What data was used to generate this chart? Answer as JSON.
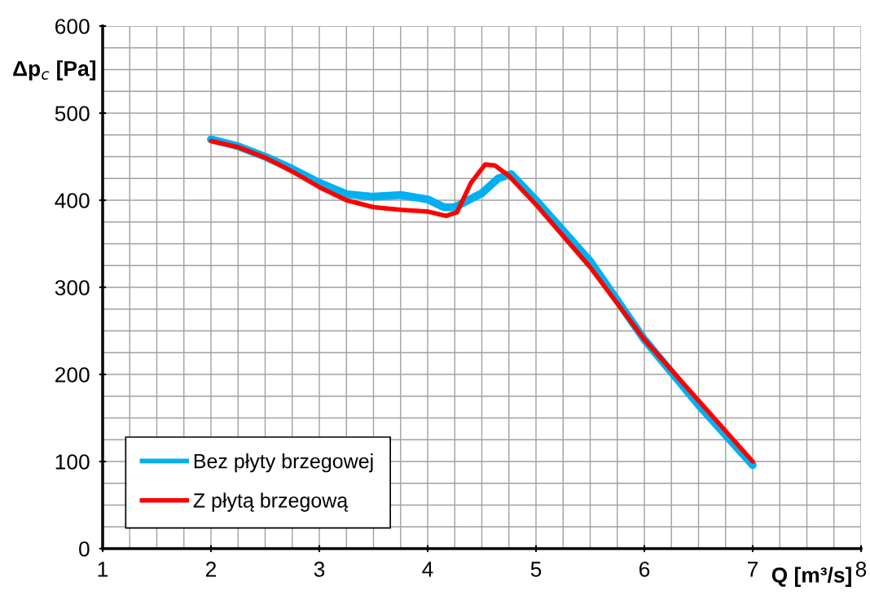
{
  "chart_data": {
    "type": "line",
    "xlabel": "Q [m³/s]",
    "ylabel": "Δp$_{c}$ [Pa]",
    "xlim": [
      1,
      8
    ],
    "ylim": [
      0,
      600
    ],
    "xticks": [
      1,
      {
        "value": 1.25,
        "label": null
      },
      {
        "value": 1.5,
        "label": null
      },
      {
        "value": 1.75,
        "label": null
      },
      2,
      {
        "value": 2.25,
        "label": null
      },
      {
        "value": 2.5,
        "label": null
      },
      {
        "value": 2.75,
        "label": null
      },
      3,
      {
        "value": 3.25,
        "label": null
      },
      {
        "value": 3.5,
        "label": null
      },
      {
        "value": 3.75,
        "label": null
      },
      4,
      {
        "value": 4.25,
        "label": null
      },
      {
        "value": 4.5,
        "label": null
      },
      {
        "value": 4.75,
        "label": null
      },
      5,
      {
        "value": 5.25,
        "label": null
      },
      {
        "value": 5.5,
        "label": null
      },
      {
        "value": 5.75,
        "label": null
      },
      6,
      {
        "value": 6.25,
        "label": null
      },
      {
        "value": 6.5,
        "label": null
      },
      {
        "value": 6.75,
        "label": null
      },
      7,
      {
        "value": 7.25,
        "label": null
      },
      {
        "value": 7.5,
        "label": null
      },
      {
        "value": 7.75,
        "label": null
      },
      8
    ],
    "yticks": [
      0,
      {
        "value": 25,
        "label": null
      },
      {
        "value": 50,
        "label": null
      },
      {
        "value": 75,
        "label": null
      },
      100,
      {
        "value": 125,
        "label": null
      },
      {
        "value": 150,
        "label": null
      },
      {
        "value": 175,
        "label": null
      },
      200,
      {
        "value": 225,
        "label": null
      },
      {
        "value": 250,
        "label": null
      },
      {
        "value": 275,
        "label": null
      },
      300,
      {
        "value": 325,
        "label": null
      },
      {
        "value": 350,
        "label": null
      },
      {
        "value": 375,
        "label": null
      },
      400,
      {
        "value": 425,
        "label": null
      },
      {
        "value": 450,
        "label": null
      },
      {
        "value": 475,
        "label": null
      },
      500,
      {
        "value": 525,
        "label": null
      },
      {
        "value": 550,
        "label": null
      },
      {
        "value": 575,
        "label": null
      },
      600
    ],
    "grid": true,
    "legend": "bottom left",
    "marker": "none",
    "line_style": "solid",
    "series": [
      {
        "name": "Bez płyty brzegowej",
        "color": "#00b0f0",
        "x": [
          2,
          2.25,
          2.5,
          2.75,
          3,
          3.25,
          3.5,
          3.75,
          4,
          4.15,
          4.25,
          4.5,
          4.65,
          4.77,
          5,
          5.5,
          6,
          6.5,
          7
        ],
        "values": [
          470,
          462,
          450,
          436,
          420,
          407,
          404,
          406,
          401,
          392,
          392,
          408,
          425,
          430,
          400,
          330,
          240,
          165,
          96
        ]
      },
      {
        "name": "Z płytą brzegową",
        "color": "#ff0000",
        "x": [
          2,
          2.25,
          2.5,
          2.75,
          3,
          3.25,
          3.5,
          3.75,
          4,
          4.17,
          4.27,
          4.4,
          4.53,
          4.62,
          4.75,
          5,
          5.5,
          6,
          6.5,
          7
        ],
        "values": [
          468,
          461,
          449,
          433,
          415,
          400,
          392,
          389,
          387,
          382,
          386,
          420,
          441,
          440,
          428,
          395,
          323,
          240,
          170,
          100
        ]
      }
    ]
  }
}
